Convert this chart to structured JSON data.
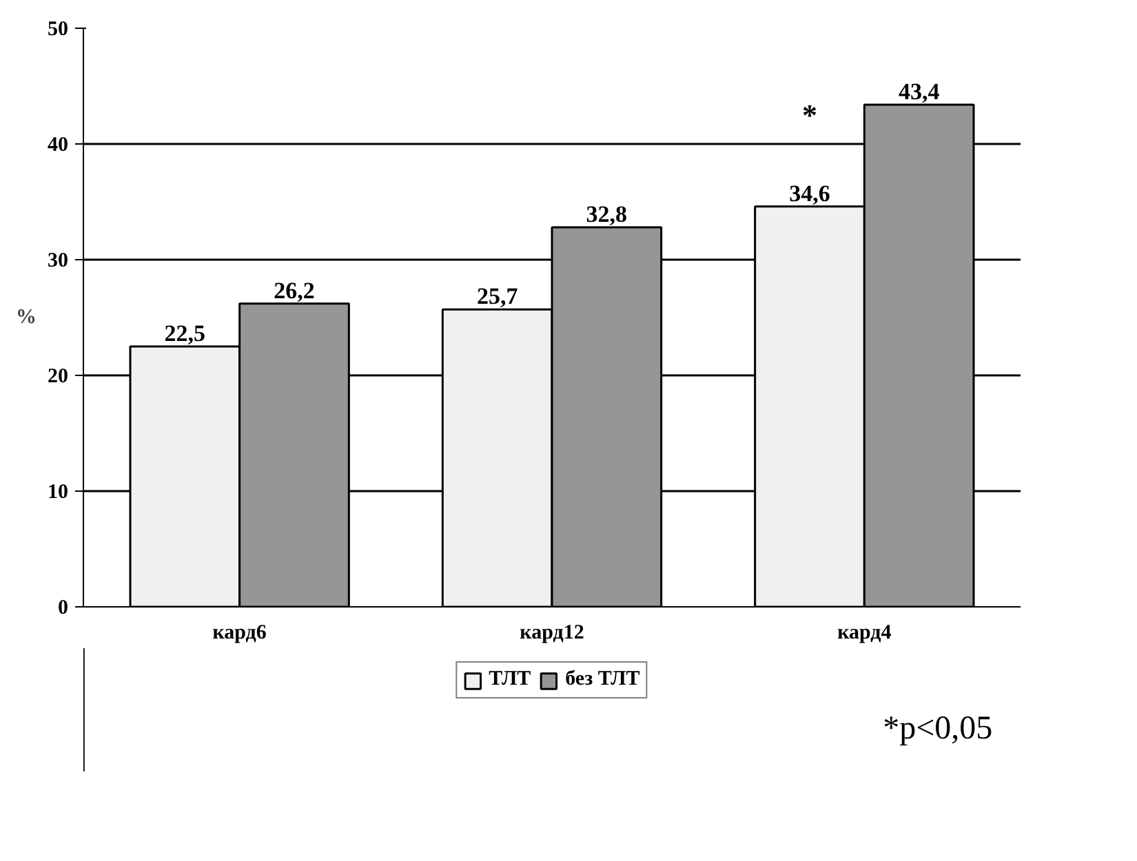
{
  "chart_data": {
    "type": "bar",
    "ylabel": "%",
    "categories": [
      "кард6",
      "кард12",
      "кард4"
    ],
    "series": [
      {
        "name": "ТЛТ",
        "color": "#f0f0f0",
        "values": [
          22.5,
          25.7,
          34.6
        ],
        "value_labels": [
          "22,5",
          "25,7",
          "34,6"
        ]
      },
      {
        "name": "без ТЛТ",
        "color": "#969696",
        "values": [
          26.2,
          32.8,
          43.4
        ],
        "value_labels": [
          "26,2",
          "32,8",
          "43,4"
        ]
      }
    ],
    "ylim": [
      0,
      50
    ],
    "yticks": [
      0,
      10,
      20,
      30,
      40,
      50
    ],
    "grid": "y",
    "legend": "bottom",
    "annotations": [
      {
        "text": "*",
        "x": "кард4",
        "y": 41
      },
      "*p<0,05"
    ]
  }
}
